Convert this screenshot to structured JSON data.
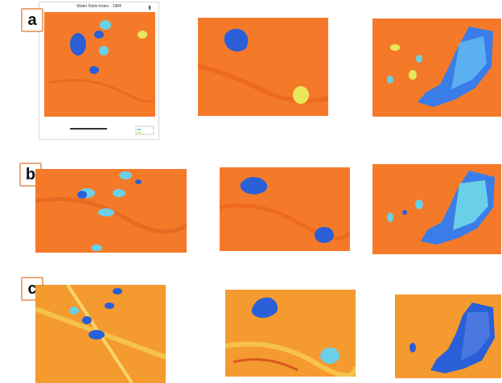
{
  "figure": {
    "labels": [
      "a",
      "b",
      "c"
    ],
    "top_left_map": {
      "title": "Water Ratio Index - 1984",
      "north_icon": "north-arrow-icon"
    },
    "colors": {
      "land": "#f47a2a",
      "land_alt": "#f59a2e",
      "water_deep": "#2a5fd8",
      "water_shallow": "#6ad0e8",
      "wet_yellow": "#e9e85a",
      "label_border": "#e8a87c"
    }
  }
}
